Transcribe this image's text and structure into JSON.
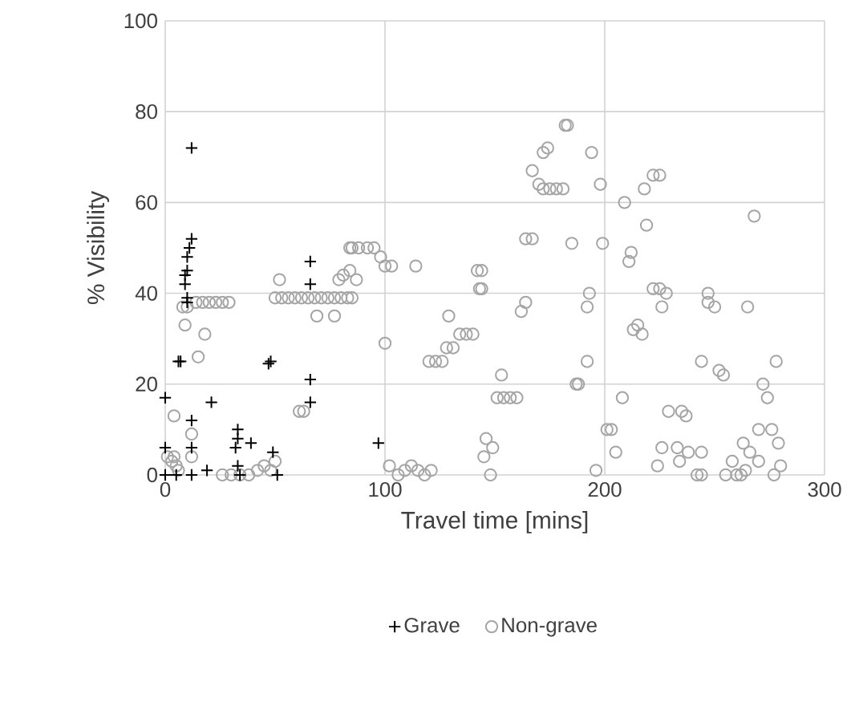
{
  "chart_data": {
    "type": "scatter",
    "xlabel": "Travel time [mins]",
    "ylabel": "% Visibility",
    "xlim": [
      0,
      300
    ],
    "xticks": [
      0,
      100,
      200,
      300
    ],
    "ylim": [
      0,
      100
    ],
    "yticks": [
      0,
      20,
      40,
      60,
      80,
      100
    ],
    "grid": true,
    "legend": "bottom",
    "series": [
      {
        "name": "Grave",
        "color": "#000000",
        "marker": "cross",
        "x": [
          12,
          12,
          11,
          10,
          10,
          9,
          9,
          10,
          10,
          6,
          7,
          0,
          21,
          12,
          12,
          0,
          0,
          5,
          12,
          19,
          47,
          48,
          66,
          66,
          66,
          66,
          33,
          33,
          32,
          39,
          33,
          34,
          49,
          51,
          97
        ],
        "values": [
          72,
          52,
          50,
          48,
          45,
          44,
          42,
          39,
          38,
          25,
          25,
          17,
          16,
          12,
          6,
          6,
          0,
          0,
          0,
          1,
          24.5,
          25,
          47,
          42,
          21,
          16,
          10,
          8,
          6,
          7,
          2,
          0,
          5,
          0,
          7
        ]
      },
      {
        "name": "Non-grave",
        "color": "#a5a5a5",
        "marker": "circle",
        "x": [
          14,
          17,
          20,
          23,
          26,
          29,
          8,
          10,
          9,
          18,
          15,
          4,
          12,
          1,
          3,
          5,
          6,
          4,
          12,
          50,
          53,
          56,
          59,
          62,
          65,
          68,
          71,
          74,
          77,
          80,
          83,
          85,
          52,
          69,
          77,
          79,
          84,
          84,
          61,
          63,
          26,
          30,
          34,
          38,
          42,
          45,
          48,
          50,
          85,
          88,
          92,
          95,
          98,
          100,
          81,
          87,
          103,
          114,
          100,
          129,
          120,
          123,
          126,
          128,
          131,
          134,
          137,
          140,
          142,
          143,
          153,
          151,
          154,
          157,
          160,
          102,
          106,
          109,
          112,
          115,
          118,
          121,
          146,
          145,
          149,
          148,
          183,
          182,
          172,
          174,
          194,
          167,
          170,
          172,
          175,
          178,
          181,
          198,
          209,
          218,
          222,
          225,
          219,
          212,
          211,
          164,
          167,
          185,
          199,
          144,
          144,
          164,
          162,
          193,
          192,
          222,
          225,
          228,
          226,
          213,
          215,
          217,
          192,
          188,
          187,
          208,
          244,
          229,
          235,
          237,
          201,
          203,
          205,
          196,
          226,
          233,
          238,
          244,
          224,
          234,
          242,
          244,
          247,
          247,
          250,
          252,
          254,
          258,
          262,
          265,
          268,
          270,
          272,
          274,
          276,
          278,
          279,
          280,
          277,
          266,
          255,
          260,
          263,
          270,
          264
        ],
        "values": [
          38,
          38,
          38,
          38,
          38,
          38,
          37,
          37,
          33,
          31,
          26,
          13,
          9,
          4,
          3,
          2,
          1,
          4,
          4,
          39,
          39,
          39,
          39,
          39,
          39,
          39,
          39,
          39,
          39,
          39,
          39,
          39,
          43,
          35,
          35,
          43,
          50,
          45,
          14,
          14,
          0,
          0,
          0,
          0,
          1,
          2,
          1,
          3,
          50,
          50,
          50,
          50,
          48,
          46,
          44,
          43,
          46,
          46,
          29,
          35,
          25,
          25,
          25,
          28,
          28,
          31,
          31,
          31,
          45,
          41,
          22,
          17,
          17,
          17,
          17,
          2,
          0,
          1,
          2,
          1,
          0,
          1,
          8,
          4,
          6,
          0,
          77,
          77,
          71,
          72,
          71,
          67,
          64,
          63,
          63,
          63,
          63,
          64,
          60,
          63,
          66,
          66,
          55,
          49,
          47,
          52,
          52,
          51,
          51,
          45,
          41,
          38,
          36,
          40,
          37,
          41,
          41,
          40,
          37,
          32,
          33,
          31,
          25,
          20,
          20,
          17,
          25,
          14,
          14,
          13,
          10,
          10,
          5,
          1,
          6,
          6,
          5,
          5,
          2,
          3,
          0,
          0,
          40,
          38,
          37,
          23,
          22,
          3,
          0,
          37,
          57,
          10,
          20,
          17,
          10,
          25,
          7,
          2,
          0,
          5,
          0,
          0,
          7,
          3,
          1
        ]
      }
    ]
  }
}
